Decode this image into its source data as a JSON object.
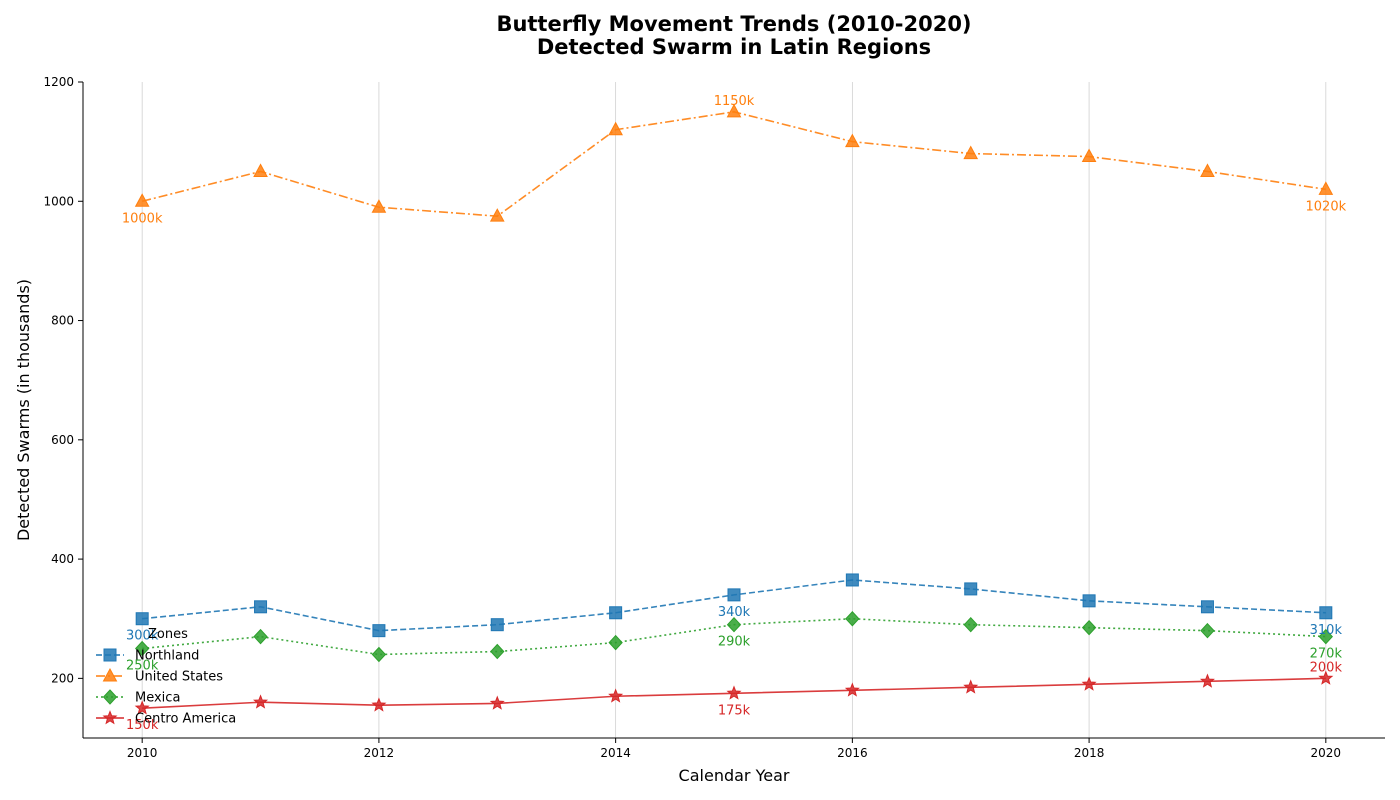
{
  "chart_data": {
    "type": "line",
    "title": "Butterfly Movement Trends (2010-2020)",
    "subtitle": "Detected Swarm in Latin Regions",
    "xlabel": "Calendar Year",
    "ylabel": "Detected Swarms (in thousands)",
    "xlim": [
      2009.5,
      2020.5
    ],
    "ylim": [
      100,
      1200
    ],
    "xticks": [
      2010,
      2012,
      2014,
      2016,
      2018,
      2020
    ],
    "yticks": [
      200,
      400,
      600,
      800,
      1000,
      1200
    ],
    "grid": "vertical",
    "legend": {
      "title": "Zones",
      "placement": "lower-left"
    },
    "x": [
      2010,
      2011,
      2012,
      2013,
      2014,
      2015,
      2016,
      2017,
      2018,
      2019,
      2020
    ],
    "series": [
      {
        "name": "Northland",
        "color": "#1f77b4",
        "marker": "square",
        "line": "dashed",
        "values": [
          300,
          320,
          280,
          290,
          310,
          340,
          365,
          350,
          330,
          320,
          310
        ]
      },
      {
        "name": "United States",
        "color": "#ff7f0e",
        "marker": "triangle",
        "line": "dashdot",
        "values": [
          1000,
          1050,
          990,
          975,
          1120,
          1150,
          1100,
          1080,
          1075,
          1050,
          1020
        ]
      },
      {
        "name": "Mexica",
        "color": "#2ca02c",
        "marker": "diamond",
        "line": "dotted",
        "values": [
          250,
          270,
          240,
          245,
          260,
          290,
          300,
          290,
          285,
          280,
          270
        ]
      },
      {
        "name": "Centro America",
        "color": "#d62728",
        "marker": "star",
        "line": "solid",
        "values": [
          150,
          160,
          155,
          158,
          170,
          175,
          180,
          185,
          190,
          195,
          200
        ]
      }
    ],
    "annotations": [
      {
        "series": 0,
        "x": 2010,
        "text": "300k",
        "dy": 1
      },
      {
        "series": 0,
        "x": 2015,
        "text": "340k",
        "dy": 1
      },
      {
        "series": 0,
        "x": 2020,
        "text": "310k",
        "dy": 1
      },
      {
        "series": 1,
        "x": 2010,
        "text": "1000k",
        "dy": 1
      },
      {
        "series": 1,
        "x": 2015,
        "text": "1150k",
        "dy": -1
      },
      {
        "series": 1,
        "x": 2020,
        "text": "1020k",
        "dy": 1
      },
      {
        "series": 2,
        "x": 2010,
        "text": "250k",
        "dy": 1
      },
      {
        "series": 2,
        "x": 2015,
        "text": "290k",
        "dy": 1
      },
      {
        "series": 2,
        "x": 2020,
        "text": "270k",
        "dy": 1
      },
      {
        "series": 3,
        "x": 2010,
        "text": "150k",
        "dy": 1
      },
      {
        "series": 3,
        "x": 2015,
        "text": "175k",
        "dy": 1
      },
      {
        "series": 3,
        "x": 2020,
        "text": "200k",
        "dy": -1
      }
    ]
  }
}
